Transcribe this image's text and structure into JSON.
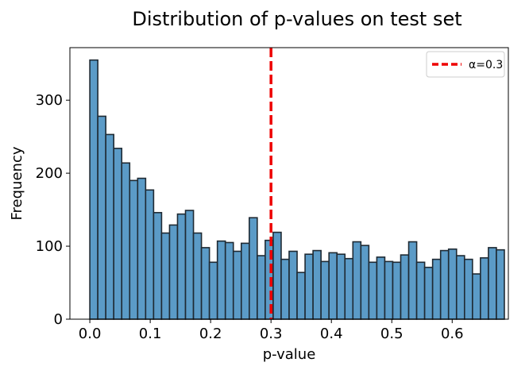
{
  "chart_data": {
    "type": "bar",
    "subtype": "histogram",
    "title": "Distribution of p-values on test set",
    "xlabel": "p-value",
    "ylabel": "Frequency",
    "xlim": [
      -0.033,
      0.693
    ],
    "ylim": [
      0,
      372
    ],
    "x_ticks": [
      0.0,
      0.1,
      0.2,
      0.3,
      0.4,
      0.5,
      0.6
    ],
    "x_tick_labels": [
      "0.0",
      "0.1",
      "0.2",
      "0.3",
      "0.4",
      "0.5",
      "0.6"
    ],
    "y_ticks": [
      0,
      100,
      200,
      300
    ],
    "y_tick_labels": [
      "0",
      "100",
      "200",
      "300"
    ],
    "bin_start": 0.0,
    "bin_width": 0.0132,
    "counts": [
      355,
      278,
      253,
      234,
      214,
      190,
      193,
      177,
      146,
      118,
      129,
      144,
      149,
      118,
      98,
      78,
      107,
      105,
      93,
      104,
      139,
      87,
      108,
      119,
      82,
      93,
      64,
      89,
      94,
      79,
      91,
      89,
      83,
      106,
      101,
      78,
      85,
      79,
      78,
      88,
      106,
      78,
      71,
      82,
      94,
      96,
      87,
      82,
      62,
      84,
      98,
      95
    ],
    "bar_color": "#5b9bc7",
    "bar_edge_color": "#1f2a33",
    "threshold": {
      "value": 0.3,
      "label": "α=0.3",
      "color": "#ee0000",
      "style": "dashed"
    },
    "legend": {
      "placement": "top-right",
      "entries": [
        {
          "label": "α=0.3",
          "color": "#ee0000",
          "style": "dashed"
        }
      ]
    },
    "grid": false
  }
}
